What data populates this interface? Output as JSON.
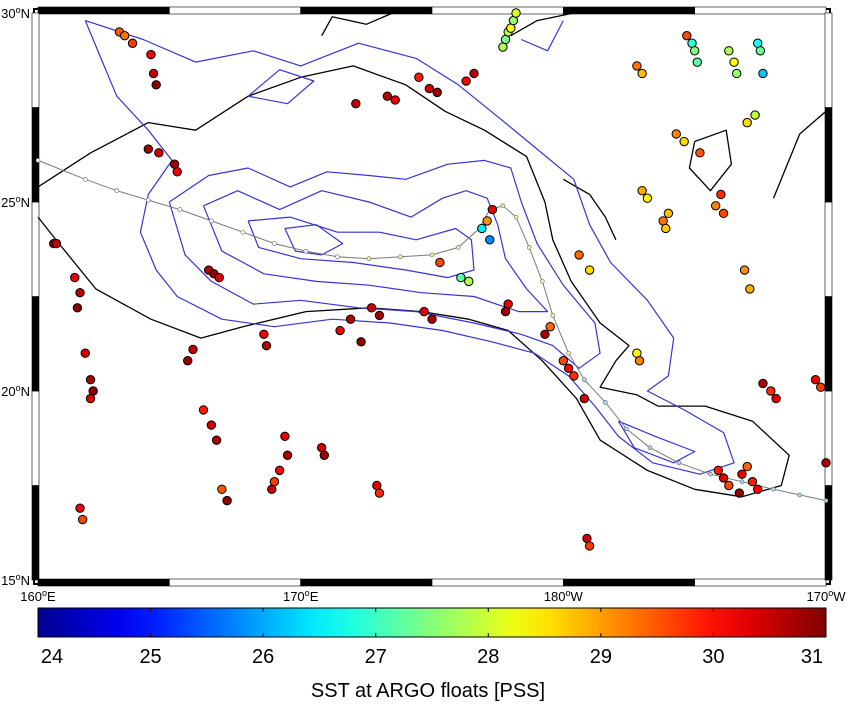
{
  "map": {
    "lat_labels": [
      {
        "deg": "30",
        "hem": "N",
        "lat": 30
      },
      {
        "deg": "25",
        "hem": "N",
        "lat": 25
      },
      {
        "deg": "20",
        "hem": "N",
        "lat": 20
      },
      {
        "deg": "15",
        "hem": "N",
        "lat": 15
      }
    ],
    "lon_labels": [
      {
        "deg": "160",
        "hem": "E",
        "lon": 160
      },
      {
        "deg": "170",
        "hem": "E",
        "lon": 170
      },
      {
        "deg": "180",
        "hem": "W",
        "lon": 180
      },
      {
        "deg": "170",
        "hem": "W",
        "lon": 190
      }
    ],
    "lon_range": [
      160,
      190
    ],
    "lat_range": [
      15,
      30
    ],
    "track": [
      [
        160.0,
        26.1
      ],
      [
        161.8,
        25.6
      ],
      [
        163.0,
        25.3
      ],
      [
        164.2,
        25.05
      ],
      [
        165.4,
        24.8
      ],
      [
        166.6,
        24.5
      ],
      [
        167.8,
        24.2
      ],
      [
        169.0,
        23.9
      ],
      [
        170.2,
        23.7
      ],
      [
        171.4,
        23.55
      ],
      [
        172.6,
        23.5
      ],
      [
        173.8,
        23.55
      ],
      [
        175.0,
        23.6
      ],
      [
        176.0,
        23.8
      ],
      [
        176.8,
        24.3
      ],
      [
        177.2,
        24.8
      ],
      [
        177.7,
        24.9
      ],
      [
        178.2,
        24.6
      ],
      [
        178.7,
        23.8
      ],
      [
        179.2,
        22.9
      ],
      [
        179.6,
        22.0
      ],
      [
        180.2,
        21.0
      ],
      [
        180.8,
        20.3
      ],
      [
        181.6,
        19.7
      ],
      [
        182.4,
        19.0
      ],
      [
        183.3,
        18.5
      ],
      [
        184.4,
        18.1
      ],
      [
        185.6,
        17.8
      ],
      [
        186.8,
        17.6
      ],
      [
        188.0,
        17.4
      ],
      [
        189.0,
        17.25
      ],
      [
        190.0,
        17.1
      ]
    ],
    "black_contours": [
      [
        [
          160.0,
          25.4
        ],
        [
          162.0,
          26.3
        ],
        [
          164.2,
          27.1
        ],
        [
          166.0,
          26.9
        ],
        [
          168.0,
          27.8
        ],
        [
          170.0,
          28.3
        ],
        [
          172.0,
          28.6
        ],
        [
          174.0,
          28.1
        ],
        [
          175.5,
          27.4
        ],
        [
          177.0,
          26.9
        ],
        [
          178.6,
          26.2
        ],
        [
          179.3,
          25.0
        ],
        [
          179.6,
          24.0
        ],
        [
          180.3,
          22.9
        ],
        [
          181.4,
          21.8
        ],
        [
          182.5,
          21.2
        ],
        [
          182.0,
          20.8
        ],
        [
          181.4,
          20.1
        ],
        [
          182.8,
          19.9
        ],
        [
          183.6,
          19.6
        ],
        [
          185.4,
          19.6
        ],
        [
          187.2,
          19.2
        ],
        [
          188.6,
          18.3
        ],
        [
          188.3,
          17.5
        ],
        [
          186.8,
          17.2
        ],
        [
          185.0,
          17.4
        ],
        [
          183.2,
          17.9
        ],
        [
          181.4,
          18.7
        ],
        [
          180.5,
          19.8
        ],
        [
          179.2,
          20.8
        ],
        [
          177.9,
          21.6
        ],
        [
          176.4,
          21.9
        ],
        [
          174.6,
          22.1
        ],
        [
          172.6,
          22.2
        ],
        [
          170.2,
          22.1
        ],
        [
          167.8,
          21.7
        ],
        [
          166.2,
          21.4
        ],
        [
          164.3,
          21.9
        ],
        [
          162.2,
          22.7
        ],
        [
          160.8,
          23.9
        ],
        [
          160.0,
          24.6
        ]
      ],
      [
        [
          180.0,
          25.6
        ],
        [
          181.0,
          25.2
        ],
        [
          181.6,
          24.6
        ],
        [
          182.0,
          24.0
        ]
      ],
      [
        [
          185.0,
          26.6
        ],
        [
          186.2,
          26.9
        ],
        [
          186.4,
          26.0
        ],
        [
          185.6,
          25.3
        ],
        [
          184.8,
          25.9
        ],
        [
          185.0,
          26.6
        ]
      ],
      [
        [
          188.0,
          25.1
        ],
        [
          189.0,
          26.8
        ],
        [
          190.0,
          27.4
        ]
      ],
      [
        [
          170.8,
          29.4
        ],
        [
          171.2,
          29.9
        ],
        [
          172.5,
          29.7
        ],
        [
          173.5,
          30.0
        ]
      ],
      [
        [
          178.0,
          29.4
        ],
        [
          179.0,
          29.8
        ],
        [
          180.4,
          30.0
        ]
      ]
    ],
    "blue_contours": [
      [
        [
          161.8,
          29.8
        ],
        [
          164.0,
          29.3
        ],
        [
          166.0,
          28.7
        ],
        [
          168.2,
          29.0
        ],
        [
          170.0,
          28.6
        ],
        [
          172.2,
          29.2
        ],
        [
          174.4,
          28.8
        ],
        [
          176.0,
          28.1
        ],
        [
          177.6,
          27.2
        ],
        [
          179.0,
          26.4
        ],
        [
          180.4,
          25.6
        ],
        [
          181.0,
          24.4
        ],
        [
          181.8,
          23.4
        ],
        [
          183.2,
          22.4
        ],
        [
          184.2,
          21.4
        ],
        [
          184.0,
          20.4
        ],
        [
          183.2,
          20.0
        ],
        [
          184.6,
          19.5
        ],
        [
          186.1,
          18.9
        ],
        [
          186.5,
          18.1
        ],
        [
          185.2,
          17.8
        ],
        [
          183.4,
          18.1
        ],
        [
          182.1,
          18.8
        ],
        [
          181.2,
          19.6
        ],
        [
          180.2,
          20.4
        ],
        [
          178.9,
          21.0
        ],
        [
          177.3,
          21.3
        ],
        [
          175.4,
          21.6
        ],
        [
          173.4,
          21.8
        ],
        [
          171.2,
          21.9
        ],
        [
          169.0,
          21.7
        ],
        [
          167.0,
          21.9
        ],
        [
          165.3,
          22.5
        ],
        [
          164.5,
          23.2
        ],
        [
          163.9,
          24.2
        ],
        [
          164.2,
          25.2
        ],
        [
          165.1,
          26.1
        ],
        [
          164.2,
          26.9
        ],
        [
          163.0,
          27.8
        ],
        [
          162.4,
          28.8
        ],
        [
          161.8,
          29.8
        ]
      ],
      [
        [
          165.0,
          25.0
        ],
        [
          166.5,
          25.7
        ],
        [
          168.0,
          25.9
        ],
        [
          169.6,
          25.4
        ],
        [
          171.0,
          25.8
        ],
        [
          172.6,
          25.7
        ],
        [
          174.0,
          25.6
        ],
        [
          175.6,
          26.0
        ],
        [
          177.0,
          26.1
        ],
        [
          178.0,
          25.9
        ],
        [
          178.4,
          25.0
        ],
        [
          179.0,
          23.9
        ],
        [
          180.0,
          22.8
        ],
        [
          181.2,
          21.8
        ],
        [
          181.4,
          21.0
        ],
        [
          180.6,
          20.6
        ],
        [
          179.6,
          21.2
        ],
        [
          178.4,
          21.5
        ],
        [
          176.6,
          21.8
        ],
        [
          174.4,
          22.1
        ],
        [
          172.2,
          22.2
        ],
        [
          170.0,
          22.4
        ],
        [
          168.2,
          22.3
        ],
        [
          166.6,
          22.9
        ],
        [
          165.6,
          23.6
        ],
        [
          165.0,
          25.0
        ]
      ],
      [
        [
          166.3,
          24.9
        ],
        [
          167.6,
          25.3
        ],
        [
          169.2,
          24.8
        ],
        [
          170.8,
          25.3
        ],
        [
          172.6,
          25.0
        ],
        [
          174.2,
          24.6
        ],
        [
          175.4,
          25.1
        ],
        [
          176.3,
          25.3
        ],
        [
          177.1,
          25.1
        ],
        [
          177.5,
          24.4
        ],
        [
          177.8,
          23.5
        ],
        [
          178.6,
          22.7
        ],
        [
          179.4,
          22.1
        ],
        [
          178.3,
          22.1
        ],
        [
          176.6,
          22.5
        ],
        [
          174.6,
          22.6
        ],
        [
          172.6,
          22.8
        ],
        [
          170.6,
          22.9
        ],
        [
          168.6,
          23.1
        ],
        [
          167.0,
          23.7
        ],
        [
          166.3,
          24.9
        ]
      ],
      [
        [
          168.0,
          24.5
        ],
        [
          169.6,
          24.6
        ],
        [
          171.4,
          24.2
        ],
        [
          173.0,
          24.2
        ],
        [
          174.4,
          24.0
        ],
        [
          175.9,
          24.3
        ],
        [
          176.5,
          24.0
        ],
        [
          176.6,
          23.2
        ],
        [
          175.6,
          23.0
        ],
        [
          174.0,
          23.2
        ],
        [
          172.0,
          23.4
        ],
        [
          170.0,
          23.5
        ],
        [
          168.4,
          23.8
        ],
        [
          168.0,
          24.5
        ]
      ],
      [
        [
          169.4,
          24.3
        ],
        [
          170.6,
          24.4
        ],
        [
          171.6,
          23.9
        ],
        [
          170.8,
          23.6
        ],
        [
          169.8,
          23.7
        ],
        [
          169.4,
          24.3
        ]
      ],
      [
        [
          182.1,
          19.2
        ],
        [
          183.5,
          18.8
        ],
        [
          185.0,
          18.4
        ],
        [
          184.2,
          18.1
        ],
        [
          182.7,
          18.5
        ],
        [
          182.1,
          19.2
        ]
      ],
      [
        [
          168.0,
          27.8
        ],
        [
          169.5,
          27.6
        ],
        [
          170.5,
          28.2
        ],
        [
          169.2,
          28.5
        ],
        [
          168.0,
          27.8
        ]
      ],
      [
        [
          178.4,
          29.3
        ],
        [
          179.4,
          29.0
        ],
        [
          180.0,
          29.8
        ]
      ]
    ],
    "floats": [
      [
        160.6,
        23.9,
        30.8
      ],
      [
        160.7,
        23.9,
        30.5
      ],
      [
        161.4,
        23.0,
        30.2
      ],
      [
        161.6,
        22.6,
        30.6
      ],
      [
        161.5,
        22.2,
        30.9
      ],
      [
        161.8,
        21.0,
        30.4
      ],
      [
        162.0,
        20.3,
        30.7
      ],
      [
        162.1,
        20.0,
        30.9
      ],
      [
        162.0,
        19.8,
        30.3
      ],
      [
        161.6,
        16.9,
        30.2
      ],
      [
        161.7,
        16.6,
        29.6
      ],
      [
        163.1,
        29.5,
        29.5
      ],
      [
        163.3,
        29.4,
        29.3
      ],
      [
        163.6,
        29.2,
        29.7
      ],
      [
        164.3,
        28.9,
        30.1
      ],
      [
        164.4,
        28.4,
        30.5
      ],
      [
        164.5,
        28.1,
        30.9
      ],
      [
        164.2,
        26.4,
        30.7
      ],
      [
        164.6,
        26.3,
        30.4
      ],
      [
        165.2,
        26.0,
        30.8
      ],
      [
        165.3,
        25.8,
        30.2
      ],
      [
        166.5,
        23.2,
        30.6
      ],
      [
        166.7,
        23.1,
        30.9
      ],
      [
        166.9,
        23.0,
        30.3
      ],
      [
        165.9,
        21.1,
        30.5
      ],
      [
        165.7,
        20.8,
        30.8
      ],
      [
        166.3,
        19.5,
        29.9
      ],
      [
        166.6,
        19.1,
        30.4
      ],
      [
        166.8,
        18.7,
        30.7
      ],
      [
        167.0,
        17.4,
        29.5
      ],
      [
        167.2,
        17.1,
        30.9
      ],
      [
        168.6,
        21.5,
        30.2
      ],
      [
        168.7,
        21.2,
        30.6
      ],
      [
        169.4,
        18.8,
        30.3
      ],
      [
        169.5,
        18.3,
        30.7
      ],
      [
        169.2,
        17.9,
        30.1
      ],
      [
        169.0,
        17.6,
        29.7
      ],
      [
        168.9,
        17.4,
        30.5
      ],
      [
        170.8,
        18.5,
        30.4
      ],
      [
        170.9,
        18.3,
        30.8
      ],
      [
        171.5,
        21.6,
        30.2
      ],
      [
        171.9,
        21.9,
        30.6
      ],
      [
        172.3,
        21.3,
        30.9
      ],
      [
        172.7,
        22.2,
        30.4
      ],
      [
        173.0,
        22.0,
        30.8
      ],
      [
        172.9,
        17.5,
        30.3
      ],
      [
        173.0,
        17.3,
        29.8
      ],
      [
        172.1,
        27.6,
        30.5
      ],
      [
        173.3,
        27.8,
        30.6
      ],
      [
        173.6,
        27.7,
        30.2
      ],
      [
        174.5,
        28.3,
        29.9
      ],
      [
        174.9,
        28.0,
        30.4
      ],
      [
        175.2,
        27.9,
        30.8
      ],
      [
        176.3,
        28.2,
        30.1
      ],
      [
        176.6,
        28.4,
        30.6
      ],
      [
        177.7,
        29.1,
        27.8
      ],
      [
        177.8,
        29.3,
        27.4
      ],
      [
        177.9,
        29.5,
        27.9
      ],
      [
        178.0,
        29.6,
        28.3
      ],
      [
        178.1,
        29.8,
        27.6
      ],
      [
        178.2,
        30.0,
        28.1
      ],
      [
        174.7,
        22.1,
        30.3
      ],
      [
        175.0,
        21.9,
        30.7
      ],
      [
        177.3,
        24.8,
        30.2
      ],
      [
        177.1,
        24.5,
        29.1
      ],
      [
        176.9,
        24.3,
        26.5
      ],
      [
        177.2,
        24.0,
        25.8
      ],
      [
        175.3,
        23.4,
        29.6
      ],
      [
        176.1,
        23.0,
        27.2
      ],
      [
        176.4,
        22.9,
        27.8
      ],
      [
        177.9,
        22.3,
        30.3
      ],
      [
        177.8,
        22.1,
        30.8
      ],
      [
        179.5,
        21.7,
        29.4
      ],
      [
        179.3,
        21.5,
        30.7
      ],
      [
        180.0,
        20.8,
        29.6
      ],
      [
        180.2,
        20.6,
        30.1
      ],
      [
        180.4,
        20.4,
        29.8
      ],
      [
        180.8,
        19.8,
        30.4
      ],
      [
        180.6,
        23.6,
        29.4
      ],
      [
        181.0,
        23.2,
        28.6
      ],
      [
        182.8,
        21.0,
        28.3
      ],
      [
        182.9,
        20.8,
        29.2
      ],
      [
        183.0,
        25.3,
        28.9
      ],
      [
        183.2,
        25.1,
        28.4
      ],
      [
        184.3,
        26.8,
        29.2
      ],
      [
        184.6,
        26.6,
        28.6
      ],
      [
        185.2,
        26.3,
        29.5
      ],
      [
        184.0,
        24.7,
        28.8
      ],
      [
        183.8,
        24.5,
        29.3
      ],
      [
        183.9,
        24.3,
        28.7
      ],
      [
        182.8,
        28.6,
        29.3
      ],
      [
        183.0,
        28.4,
        28.8
      ],
      [
        184.9,
        29.2,
        26.9
      ],
      [
        185.0,
        29.0,
        27.5
      ],
      [
        185.1,
        28.7,
        27.2
      ],
      [
        184.7,
        29.4,
        29.6
      ],
      [
        186.3,
        29.0,
        27.8
      ],
      [
        186.5,
        28.7,
        28.3
      ],
      [
        186.6,
        28.4,
        27.6
      ],
      [
        187.4,
        29.2,
        26.7
      ],
      [
        187.5,
        29.0,
        27.3
      ],
      [
        187.6,
        28.4,
        26.2
      ],
      [
        187.3,
        27.3,
        27.9
      ],
      [
        187.0,
        27.1,
        28.6
      ],
      [
        186.0,
        25.2,
        29.8
      ],
      [
        185.8,
        24.9,
        29.2
      ],
      [
        186.1,
        24.7,
        29.6
      ],
      [
        186.9,
        23.2,
        29.1
      ],
      [
        187.1,
        22.7,
        28.9
      ],
      [
        185.9,
        17.9,
        29.9
      ],
      [
        186.1,
        17.7,
        30.3
      ],
      [
        186.3,
        17.5,
        29.6
      ],
      [
        186.7,
        17.3,
        30.8
      ],
      [
        186.8,
        17.8,
        30.2
      ],
      [
        187.0,
        18.0,
        29.4
      ],
      [
        187.2,
        17.6,
        29.9
      ],
      [
        187.4,
        17.4,
        30.1
      ],
      [
        187.6,
        20.2,
        30.6
      ],
      [
        187.9,
        20.0,
        29.8
      ],
      [
        188.1,
        19.8,
        30.3
      ],
      [
        189.6,
        20.3,
        30.2
      ],
      [
        189.8,
        20.1,
        29.7
      ],
      [
        190.0,
        18.1,
        30.7
      ],
      [
        180.9,
        16.1,
        30.4
      ],
      [
        181.0,
        15.9,
        29.7
      ]
    ]
  },
  "colorbar": {
    "ticks": [
      "24",
      "25",
      "26",
      "27",
      "28",
      "29",
      "30",
      "31"
    ],
    "min": 24,
    "max": 31,
    "label": "SST at ARGO floats [PSS]"
  },
  "colors": {
    "track": "#7a7a7a",
    "blue_contour": "#3535d6",
    "black_contour": "#000000",
    "frame": "#000000"
  }
}
